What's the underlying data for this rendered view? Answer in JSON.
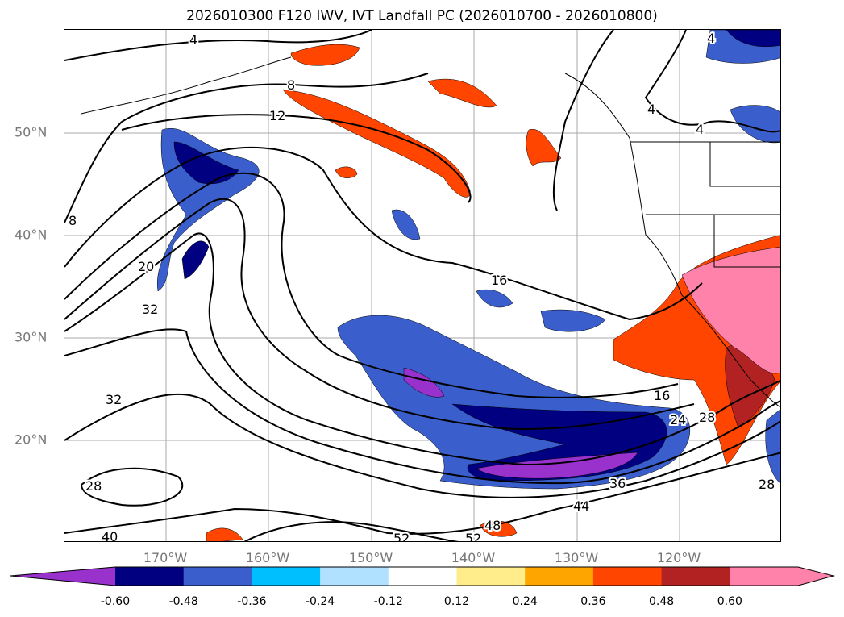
{
  "title": "2026010300 F120 IWV, IVT Landfall PC (2026010700 - 2026010800)",
  "lat_labels": [
    "50°N",
    "40°N",
    "30°N",
    "20°N"
  ],
  "lon_labels": [
    "170°W",
    "160°W",
    "150°W",
    "140°W",
    "130°W",
    "120°W"
  ],
  "colorbar": {
    "ticks": [
      "-0.60",
      "-0.48",
      "-0.36",
      "-0.24",
      "-0.12",
      "0.12",
      "0.24",
      "0.36",
      "0.48",
      "0.60"
    ],
    "colors": [
      "#9932CC",
      "#000080",
      "#3A5FCD",
      "#00BFFF",
      "#B0E2FF",
      "#FFFFFF",
      "#FFEC8B",
      "#FFA500",
      "#FF4500",
      "#B22222",
      "#FF82AB"
    ]
  },
  "contour_labels": [
    "4",
    "8",
    "12",
    "16",
    "20",
    "32",
    "32",
    "28",
    "40",
    "52",
    "52",
    "48",
    "44",
    "36",
    "24",
    "28",
    "16",
    "4",
    "4",
    "4",
    "28",
    "8"
  ]
}
